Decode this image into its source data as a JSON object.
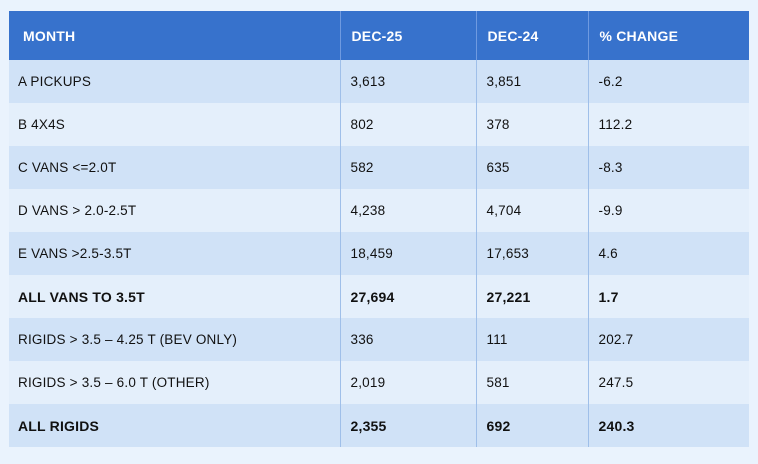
{
  "table": {
    "headers": [
      "MONTH",
      "DEC-25",
      "DEC-24",
      "% CHANGE"
    ],
    "rows": [
      {
        "label": "A PICKUPS",
        "dec25": "3,613",
        "dec24": "3,851",
        "change": "-6.2",
        "total": false
      },
      {
        "label": "B 4X4S",
        "dec25": "802",
        "dec24": "378",
        "change": "112.2",
        "total": false
      },
      {
        "label": "C VANS <=2.0T",
        "dec25": "582",
        "dec24": "635",
        "change": "-8.3",
        "total": false
      },
      {
        "label": "D VANS > 2.0-2.5T",
        "dec25": "4,238",
        "dec24": "4,704",
        "change": "-9.9",
        "total": false
      },
      {
        "label": "E VANS >2.5-3.5T",
        "dec25": "18,459",
        "dec24": "17,653",
        "change": "4.6",
        "total": false
      },
      {
        "label": "ALL VANS TO 3.5T",
        "dec25": "27,694",
        "dec24": "27,221",
        "change": "1.7",
        "total": true
      },
      {
        "label": "RIGIDS > 3.5 – 4.25 T (BEV ONLY)",
        "dec25": "336",
        "dec24": "111",
        "change": "202.7",
        "total": false
      },
      {
        "label": "RIGIDS > 3.5 – 6.0 T (OTHER)",
        "dec25": "2,019",
        "dec24": "581",
        "change": "247.5",
        "total": false
      },
      {
        "label": "ALL RIGIDS",
        "dec25": "2,355",
        "dec24": "692",
        "change": "240.3",
        "total": true
      }
    ]
  }
}
